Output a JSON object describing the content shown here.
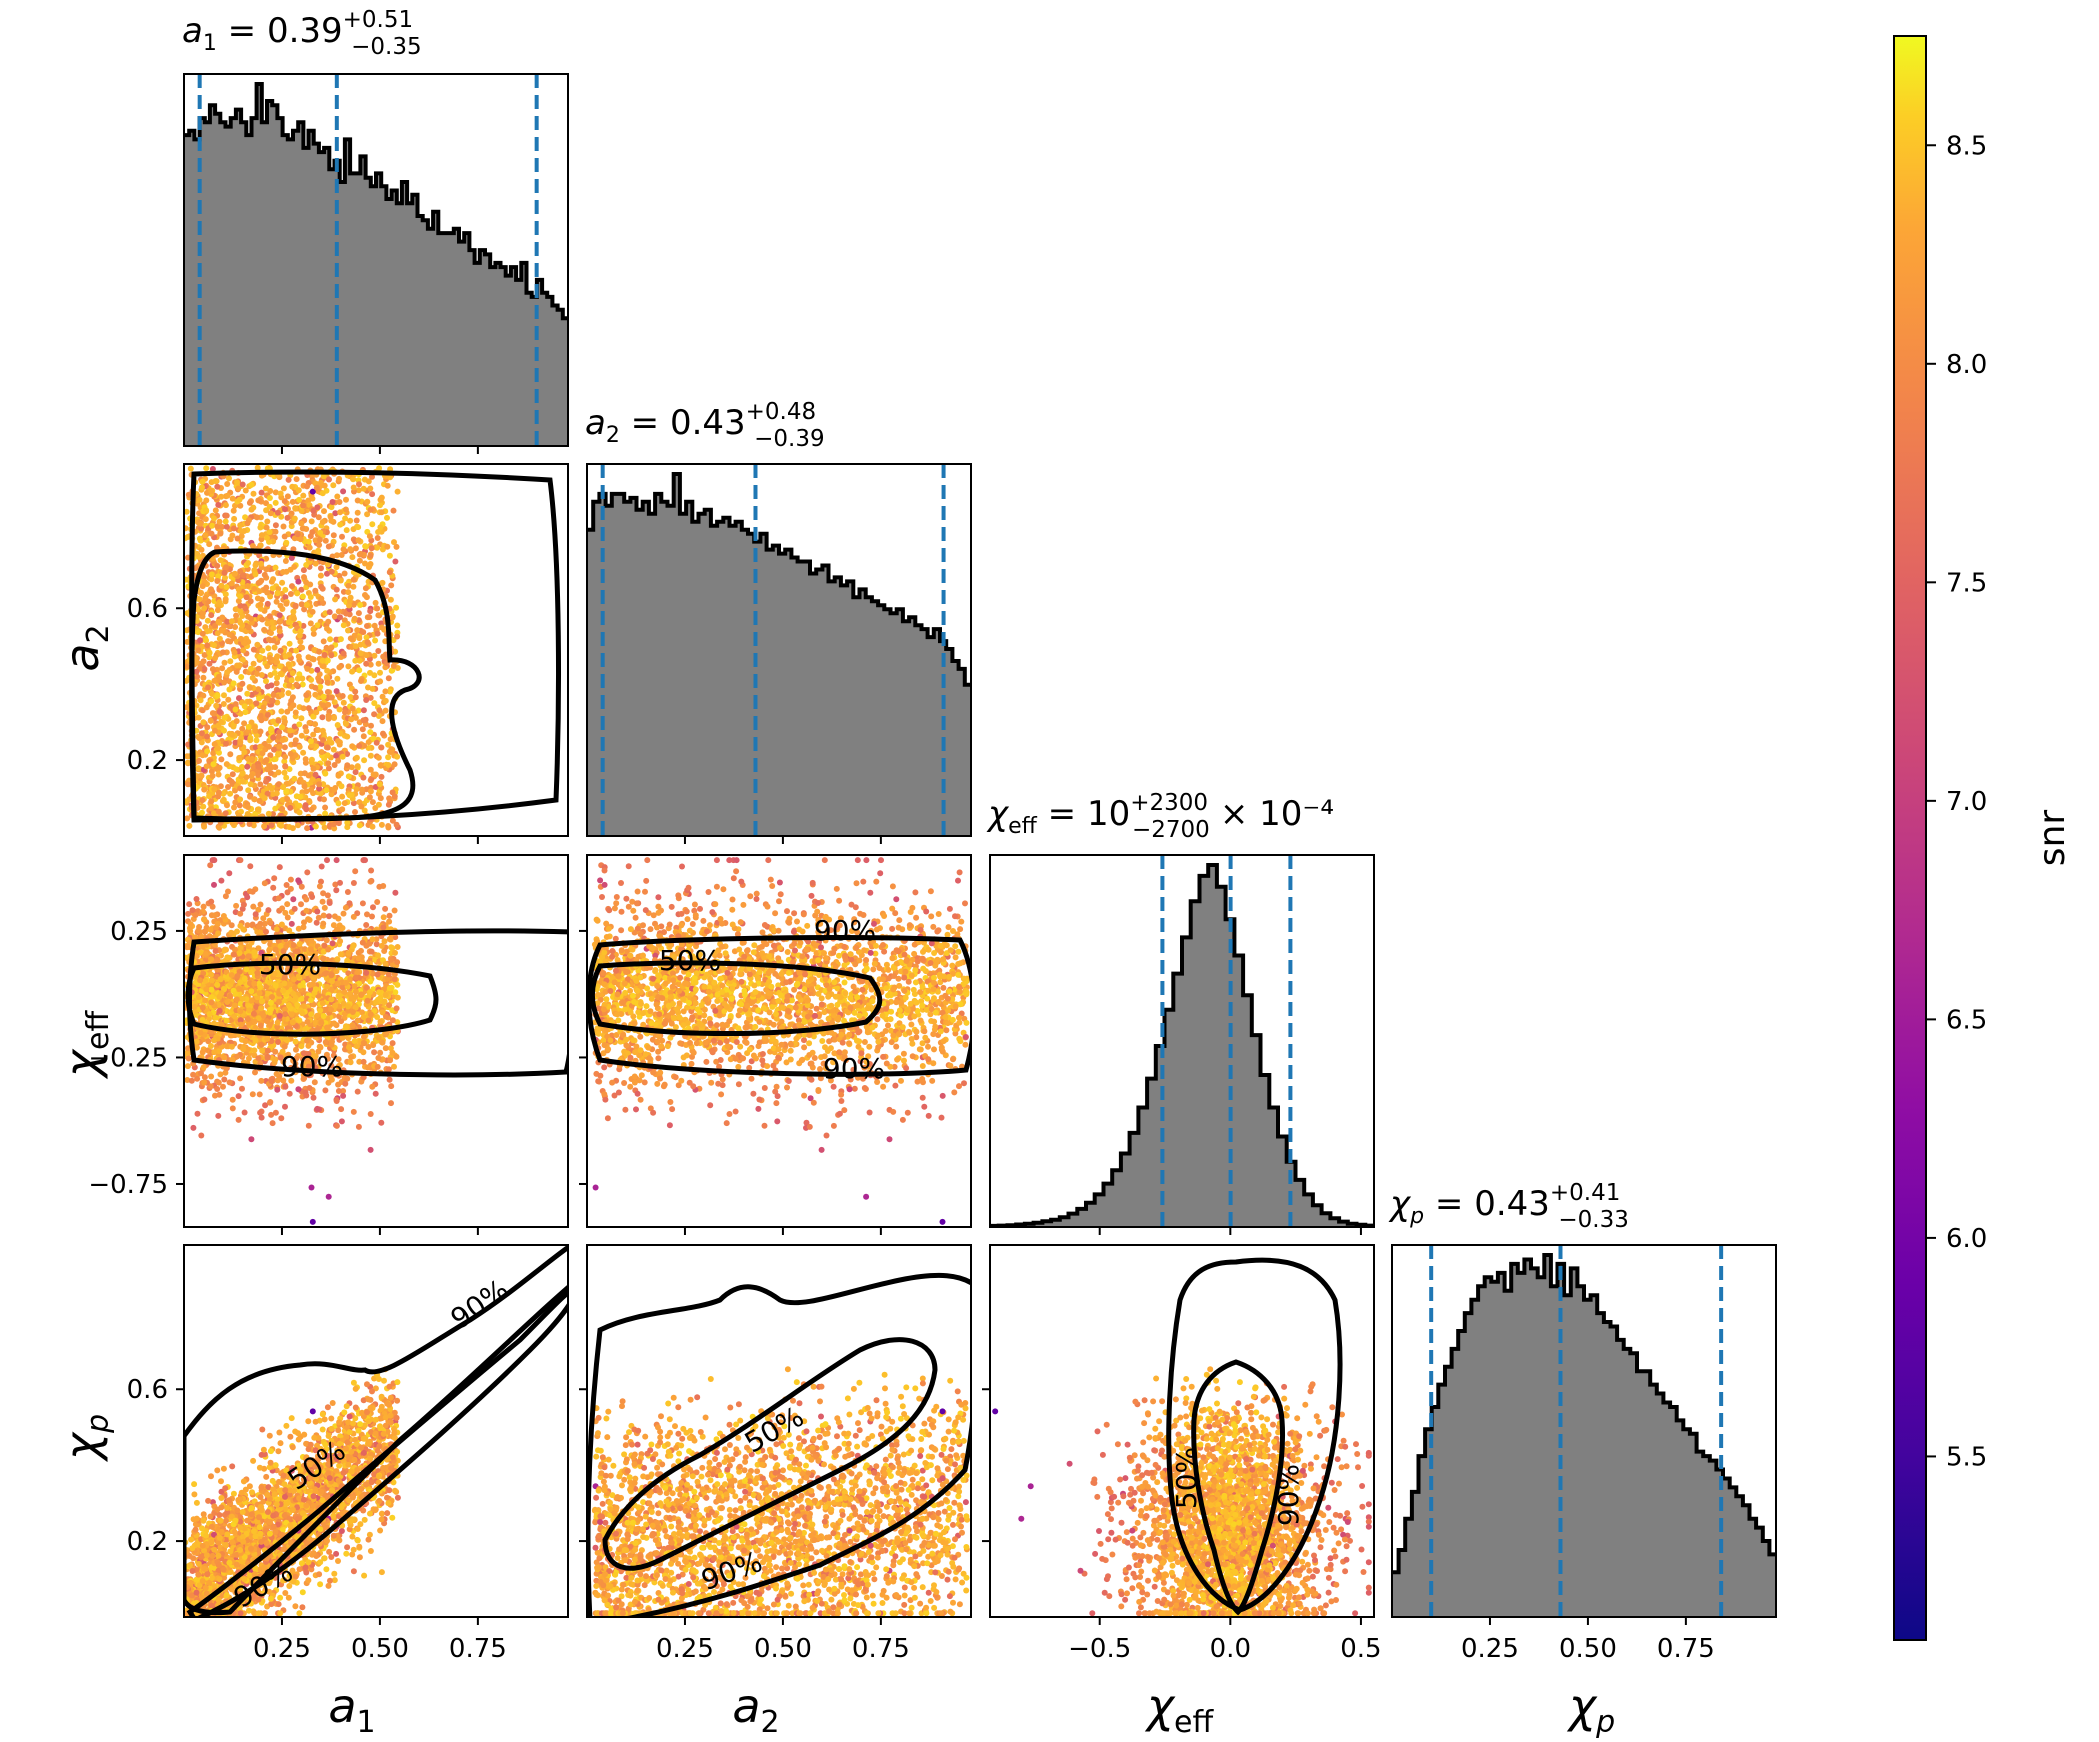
{
  "colors": {
    "hist_fill": "#808080",
    "median_lines": "#1f77b4",
    "contours": "#000000",
    "colormap": "plasma"
  },
  "titles": {
    "a1": {
      "sym": "a",
      "sub": "1",
      "value": "0.39",
      "plus": "+0.51",
      "minus": "−0.35",
      "suffix": ""
    },
    "a2": {
      "sym": "a",
      "sub": "2",
      "value": "0.43",
      "plus": "+0.48",
      "minus": "−0.39",
      "suffix": ""
    },
    "chi_eff": {
      "sym": "χ",
      "sub": "eff",
      "value": "10",
      "plus": "+2300",
      "minus": "−2700",
      "suffix": "× 10⁻⁴"
    },
    "chi_p": {
      "sym": "χ",
      "sub": "p",
      "value": "0.43",
      "plus": "+0.41",
      "minus": "−0.33",
      "suffix": ""
    }
  },
  "axis_labels": {
    "a1": {
      "sym": "a",
      "sub": "1"
    },
    "a2": {
      "sym": "a",
      "sub": "2"
    },
    "chi_eff": {
      "sym": "χ",
      "sub": "eff"
    },
    "chi_p": {
      "sym": "χ",
      "sub": "p"
    }
  },
  "colorbar": {
    "label": "snr",
    "min": 5.08,
    "max": 8.75,
    "ticks": [
      "5.5",
      "6.0",
      "6.5",
      "7.0",
      "7.5",
      "8.0",
      "8.5"
    ]
  },
  "contour_labels": {
    "fifty": "50%",
    "ninety": "90%"
  },
  "chart_data": {
    "type": "scatter",
    "plot_kind": "corner",
    "parameters": [
      "a1",
      "a2",
      "chi_eff",
      "chi_p"
    ],
    "ranges": {
      "a1": [
        0.0,
        0.98
      ],
      "a2": [
        0.0,
        0.98
      ],
      "chi_eff": [
        -0.92,
        0.55
      ],
      "chi_p": [
        0.0,
        0.98
      ]
    },
    "ticks": {
      "a1": {
        "values": [
          0.25,
          0.5,
          0.75
        ],
        "labels": [
          "0.25",
          "0.50",
          "0.75"
        ]
      },
      "a2": {
        "values": [
          0.2,
          0.6
        ],
        "labels": [
          "0.2",
          "0.6"
        ]
      },
      "a2_x": {
        "values": [
          0.25,
          0.5,
          0.75
        ],
        "labels": [
          "0.25",
          "0.50",
          "0.75"
        ]
      },
      "chi_eff": {
        "values": [
          -0.75,
          -0.25,
          0.25
        ],
        "labels": [
          "−0.75",
          "−0.25",
          "0.25"
        ]
      },
      "chi_eff_x": {
        "values": [
          -0.5,
          0.0,
          0.5
        ],
        "labels": [
          "−0.5",
          "0.0",
          "0.5"
        ]
      },
      "chi_p": {
        "values": [
          0.2,
          0.6
        ],
        "labels": [
          "0.2",
          "0.6"
        ]
      },
      "chi_p_x": {
        "values": [
          0.25,
          0.5,
          0.75
        ],
        "labels": [
          "0.25",
          "0.50",
          "0.75"
        ]
      }
    },
    "quantiles": {
      "a1": [
        0.04,
        0.39,
        0.9
      ],
      "a2": [
        0.04,
        0.43,
        0.91
      ],
      "chi_eff": [
        -0.26,
        0.001,
        0.23
      ],
      "chi_p": [
        0.1,
        0.43,
        0.84
      ]
    },
    "histograms": {
      "a1": [
        0.73,
        0.74,
        0.72,
        0.77,
        0.76,
        0.8,
        0.78,
        0.76,
        0.75,
        0.77,
        0.79,
        0.76,
        0.73,
        0.77,
        0.85,
        0.76,
        0.81,
        0.8,
        0.77,
        0.73,
        0.72,
        0.74,
        0.76,
        0.7,
        0.74,
        0.71,
        0.69,
        0.7,
        0.65,
        0.67,
        0.62,
        0.72,
        0.64,
        0.64,
        0.68,
        0.63,
        0.61,
        0.64,
        0.61,
        0.58,
        0.6,
        0.57,
        0.62,
        0.57,
        0.59,
        0.54,
        0.53,
        0.51,
        0.55,
        0.5,
        0.5,
        0.5,
        0.51,
        0.48,
        0.5,
        0.46,
        0.43,
        0.46,
        0.45,
        0.42,
        0.43,
        0.42,
        0.4,
        0.42,
        0.39,
        0.43,
        0.36,
        0.35,
        0.39,
        0.36,
        0.35,
        0.33,
        0.32,
        0.3
      ],
      "a2": [
        0.77,
        0.84,
        0.86,
        0.83,
        0.86,
        0.86,
        0.84,
        0.85,
        0.82,
        0.84,
        0.81,
        0.86,
        0.84,
        0.83,
        0.91,
        0.81,
        0.84,
        0.79,
        0.81,
        0.82,
        0.78,
        0.79,
        0.8,
        0.78,
        0.79,
        0.77,
        0.76,
        0.74,
        0.76,
        0.72,
        0.73,
        0.71,
        0.72,
        0.7,
        0.69,
        0.69,
        0.66,
        0.67,
        0.68,
        0.64,
        0.65,
        0.63,
        0.64,
        0.6,
        0.62,
        0.6,
        0.59,
        0.58,
        0.57,
        0.56,
        0.57,
        0.54,
        0.55,
        0.53,
        0.52,
        0.5,
        0.52,
        0.49,
        0.47,
        0.44,
        0.42,
        0.38
      ],
      "chi_eff": [
        0.003,
        0.004,
        0.005,
        0.007,
        0.009,
        0.012,
        0.016,
        0.02,
        0.027,
        0.037,
        0.05,
        0.067,
        0.09,
        0.12,
        0.157,
        0.203,
        0.26,
        0.33,
        0.41,
        0.5,
        0.6,
        0.7,
        0.8,
        0.9,
        0.97,
        1.0,
        0.94,
        0.85,
        0.75,
        0.64,
        0.53,
        0.42,
        0.33,
        0.25,
        0.18,
        0.13,
        0.09,
        0.06,
        0.038,
        0.024,
        0.015,
        0.009,
        0.006,
        0.004
      ],
      "chi_p": [
        0.1,
        0.15,
        0.22,
        0.28,
        0.36,
        0.42,
        0.47,
        0.52,
        0.56,
        0.6,
        0.64,
        0.68,
        0.71,
        0.74,
        0.76,
        0.75,
        0.77,
        0.73,
        0.79,
        0.77,
        0.8,
        0.78,
        0.76,
        0.81,
        0.74,
        0.79,
        0.72,
        0.78,
        0.74,
        0.71,
        0.72,
        0.68,
        0.66,
        0.65,
        0.62,
        0.6,
        0.59,
        0.55,
        0.55,
        0.52,
        0.5,
        0.48,
        0.47,
        0.44,
        0.42,
        0.41,
        0.37,
        0.36,
        0.35,
        0.33,
        0.31,
        0.29,
        0.27,
        0.25,
        0.22,
        0.2,
        0.17,
        0.14
      ]
    },
    "pairs": [
      {
        "x": "a1",
        "y": "a2",
        "correlation": 0.0
      },
      {
        "x": "a1",
        "y": "chi_eff",
        "correlation": 0.0
      },
      {
        "x": "a2",
        "y": "chi_eff",
        "correlation": 0.0
      },
      {
        "x": "a1",
        "y": "chi_p",
        "correlation": 0.85
      },
      {
        "x": "a2",
        "y": "chi_p",
        "correlation": 0.35
      },
      {
        "x": "chi_eff",
        "y": "chi_p",
        "correlation": 0.0
      }
    ]
  }
}
